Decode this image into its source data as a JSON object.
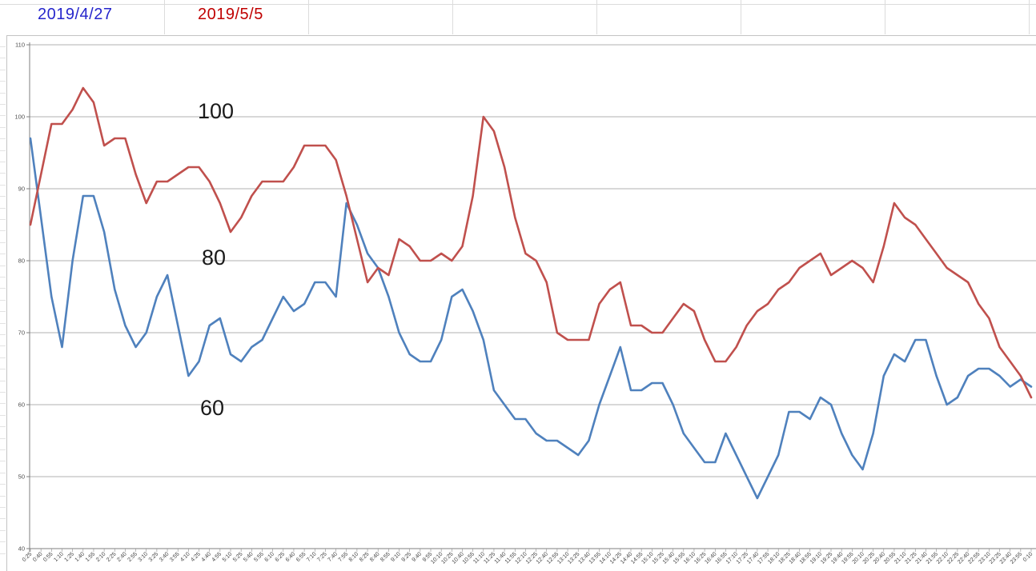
{
  "legend": {
    "series1": {
      "label": "2019/4/27",
      "color": "#2626cc"
    },
    "series2": {
      "label": "2019/5/5",
      "color": "#c00000"
    }
  },
  "chart_data": {
    "type": "line",
    "title": "",
    "xlabel": "",
    "ylabel": "",
    "ylim": [
      40,
      110
    ],
    "y_ticks": [
      110,
      100,
      90,
      80,
      70,
      60,
      50,
      40
    ],
    "grid": "horizontal",
    "legend_position": "top-left",
    "annotations": [
      "100",
      "80",
      "60"
    ],
    "x_labels": [
      "0:25",
      "0:40",
      "0:55",
      "1:10",
      "1:25",
      "1:40",
      "1:55",
      "2:10",
      "2:25",
      "2:40",
      "2:55",
      "3:10",
      "3:25",
      "3:40",
      "3:55",
      "4:10",
      "4:25",
      "4:40",
      "4:55",
      "5:10",
      "5:25",
      "5:40",
      "5:55",
      "6:10",
      "6:25",
      "6:40",
      "6:55",
      "7:10",
      "7:25",
      "7:40",
      "7:55",
      "8:10",
      "8:25",
      "8:40",
      "8:55",
      "9:10",
      "9:25",
      "9:40",
      "9:55",
      "10:10",
      "10:25",
      "10:40",
      "10:55",
      "11:10",
      "11:25",
      "11:40",
      "11:55",
      "12:10",
      "12:25",
      "12:40",
      "12:55",
      "13:10",
      "13:25",
      "13:40",
      "13:55",
      "14:10",
      "14:25",
      "14:40",
      "14:55",
      "15:10",
      "15:25",
      "15:40",
      "15:55",
      "16:10",
      "16:25",
      "16:40",
      "16:55",
      "17:10",
      "17:25",
      "17:40",
      "17:55",
      "18:10",
      "18:25",
      "18:40",
      "18:55",
      "19:10",
      "19:25",
      "19:40",
      "19:55",
      "20:10",
      "20:25",
      "20:40",
      "20:55",
      "21:10",
      "21:25",
      "21:40",
      "21:55",
      "22:10",
      "22:25",
      "22:40",
      "22:55",
      "23:10",
      "23:25",
      "23:40",
      "23:55",
      "0:10"
    ],
    "series": [
      {
        "name": "2019/4/27",
        "color": "#4f81bd",
        "values": [
          97,
          86,
          75,
          68,
          80,
          89,
          89,
          84,
          76,
          71,
          68,
          70,
          75,
          78,
          71,
          64,
          66,
          71,
          72,
          67,
          66,
          68,
          69,
          72,
          75,
          73,
          74,
          77,
          77,
          75,
          88,
          85,
          81,
          79,
          75,
          70,
          67,
          66,
          66,
          69,
          75,
          76,
          73,
          69,
          62,
          60,
          58,
          58,
          56,
          55,
          55,
          54,
          53,
          55,
          60,
          64,
          68,
          62,
          62,
          63,
          63,
          60,
          56,
          54,
          52,
          52,
          56,
          53,
          50,
          47,
          50,
          53,
          59,
          59,
          58,
          61,
          60,
          56,
          53,
          51,
          56,
          64,
          67,
          66,
          69,
          69,
          64,
          60,
          61,
          64,
          65,
          65,
          64,
          62.5,
          63.5,
          62.5
        ]
      },
      {
        "name": "2019/5/5",
        "color": "#c0504d",
        "values": [
          85,
          92,
          99,
          99,
          101,
          104,
          102,
          96,
          97,
          97,
          92,
          88,
          91,
          91,
          92,
          93,
          93,
          91,
          88,
          84,
          86,
          89,
          91,
          91,
          91,
          93,
          96,
          96,
          96,
          94,
          89,
          83,
          77,
          79,
          78,
          83,
          82,
          80,
          80,
          81,
          80,
          82,
          89,
          100,
          98,
          93,
          86,
          81,
          80,
          77,
          70,
          69,
          69,
          69,
          74,
          76,
          77,
          71,
          71,
          70,
          70,
          72,
          74,
          73,
          69,
          66,
          66,
          68,
          71,
          73,
          74,
          76,
          77,
          79,
          80,
          81,
          78,
          79,
          80,
          79,
          77,
          82,
          88,
          86,
          85,
          83,
          81,
          79,
          78,
          77,
          74,
          72,
          68,
          66,
          64,
          61
        ]
      }
    ]
  }
}
